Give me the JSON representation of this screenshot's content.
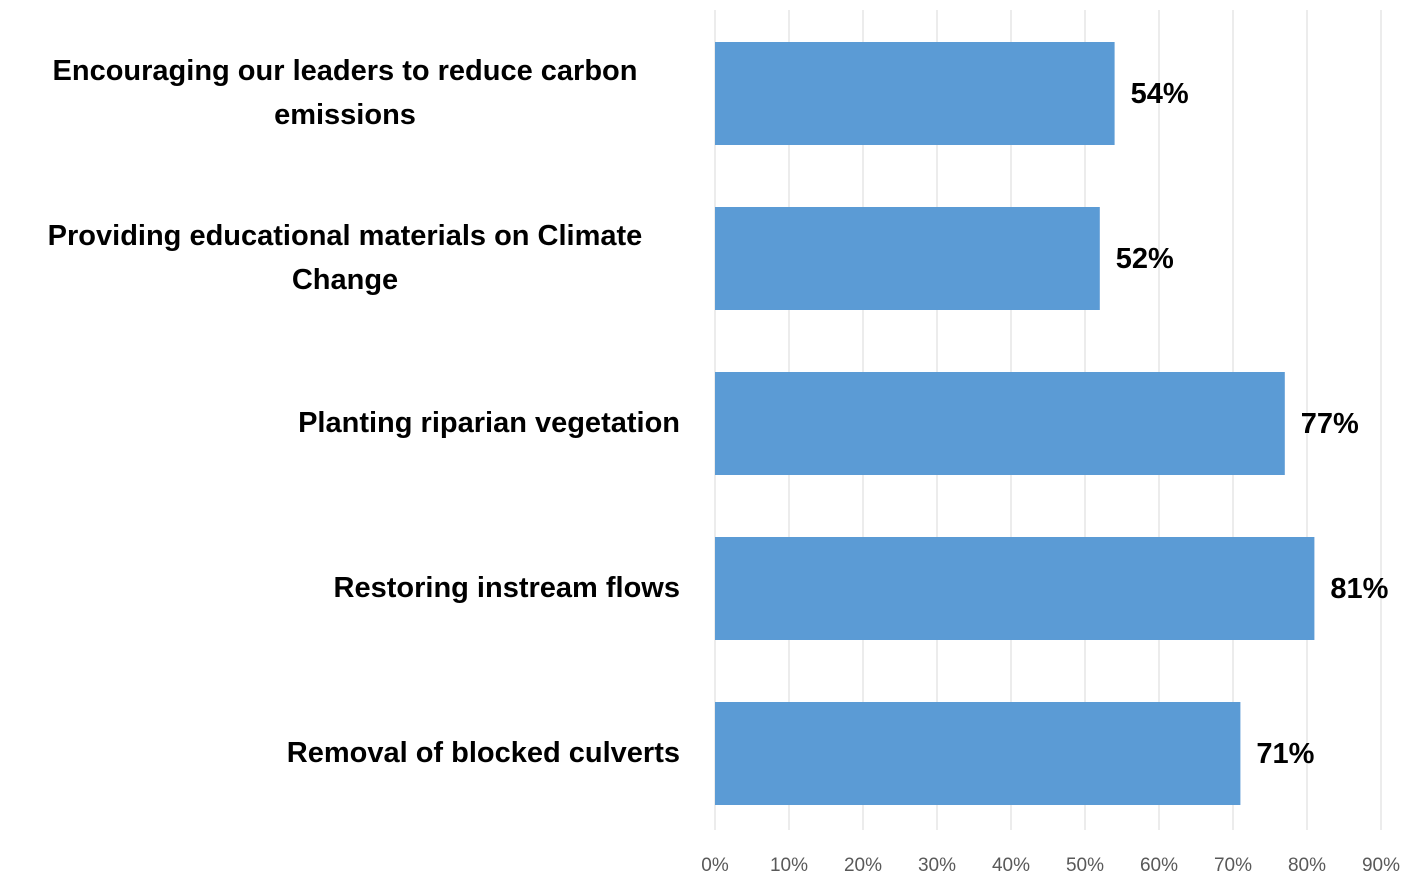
{
  "chart_data": {
    "type": "barh",
    "categories": [
      "Encouraging our leaders to reduce carbon emissions",
      "Providing educational materials on Climate Change",
      "Planting riparian vegetation",
      "Restoring instream flows",
      "Removal of blocked culverts"
    ],
    "values": [
      54,
      52,
      77,
      81,
      71
    ],
    "value_labels": [
      "54%",
      "52%",
      "77%",
      "81%",
      "71%"
    ],
    "color": "#5b9bd5",
    "xlim": [
      0,
      90
    ],
    "xticks": [
      {
        "value": 0,
        "label": "0%"
      },
      {
        "value": 10,
        "label": "10%"
      },
      {
        "value": 20,
        "label": "20%"
      },
      {
        "value": 30,
        "label": "30%"
      },
      {
        "value": 40,
        "label": "40%"
      },
      {
        "value": 50,
        "label": "50%"
      },
      {
        "value": 60,
        "label": "60%"
      },
      {
        "value": 70,
        "label": "70%"
      },
      {
        "value": 80,
        "label": "80%"
      },
      {
        "value": 90,
        "label": "90%"
      }
    ],
    "grid": true
  }
}
